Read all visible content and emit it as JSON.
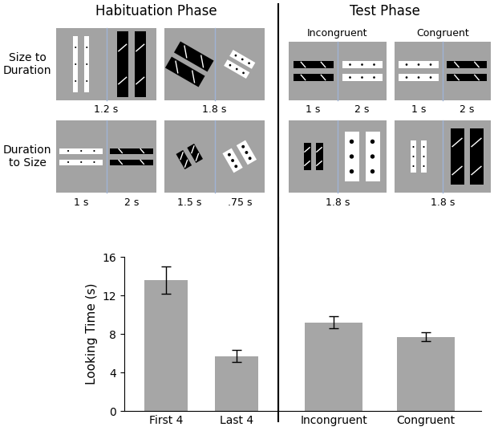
{
  "stimuli": {
    "phases": [
      "Habituation Phase",
      "Test Phase"
    ],
    "test_conditions": [
      "Incongruent",
      "Congruent"
    ],
    "rows": [
      {
        "label": "Size to\nDuration",
        "habituation": [
          [
            "1.2 s"
          ],
          [
            "1.8 s"
          ]
        ],
        "test": [
          [
            "1 s",
            "2 s"
          ],
          [
            "1 s",
            "2 s"
          ]
        ]
      },
      {
        "label": "Duration\nto Size",
        "habituation": [
          [
            "1 s",
            "2 s"
          ],
          [
            "1.5 s",
            ".75 s"
          ]
        ],
        "test": [
          [
            "1.8 s"
          ],
          [
            "1.8 s"
          ]
        ]
      }
    ]
  },
  "chart_data": [
    {
      "type": "bar",
      "categories": [
        "First 4",
        "Last 4"
      ],
      "values": [
        13.6,
        5.7
      ],
      "errors": [
        1.4,
        0.6
      ],
      "y_label": "Looking Time (s)",
      "ylim": [
        0,
        16
      ],
      "yticks": [
        0,
        4,
        8,
        12,
        16
      ],
      "color": "#a6a6a6"
    },
    {
      "type": "bar",
      "categories": [
        "Incongruent",
        "Congruent"
      ],
      "values": [
        9.2,
        7.7
      ],
      "errors": [
        0.6,
        0.45
      ],
      "ylim": [
        0,
        16
      ],
      "tick_labels": "x",
      "color": "#a6a6a6"
    }
  ]
}
